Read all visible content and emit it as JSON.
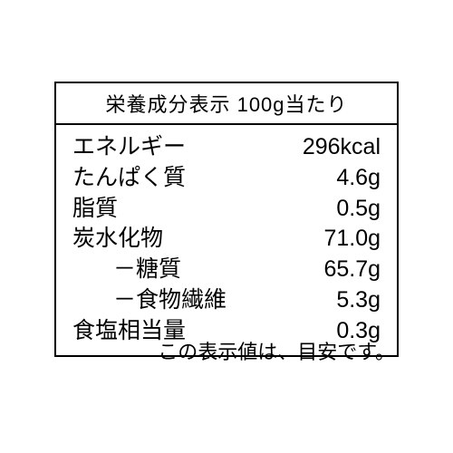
{
  "table": {
    "header": "栄養成分表示 100g当たり",
    "rows": [
      {
        "label": "エネルギー",
        "value": "296kcal",
        "sub": false
      },
      {
        "label": "たんぱく質",
        "value": "4.6g",
        "sub": false
      },
      {
        "label": "脂質",
        "value": "0.5g",
        "sub": false
      },
      {
        "label": "炭水化物",
        "value": "71.0g",
        "sub": false
      },
      {
        "label": "－糖質",
        "value": "65.7g",
        "sub": true
      },
      {
        "label": "－食物繊維",
        "value": "5.3g",
        "sub": true
      },
      {
        "label": "食塩相当量",
        "value": "0.3g",
        "sub": false
      }
    ]
  },
  "footnote": "この表示値は、目安です。",
  "style": {
    "border_color": "#000000",
    "background_color": "#ffffff",
    "text_color": "#000000",
    "header_fontsize": 22,
    "row_fontsize": 25,
    "footnote_fontsize": 22
  }
}
